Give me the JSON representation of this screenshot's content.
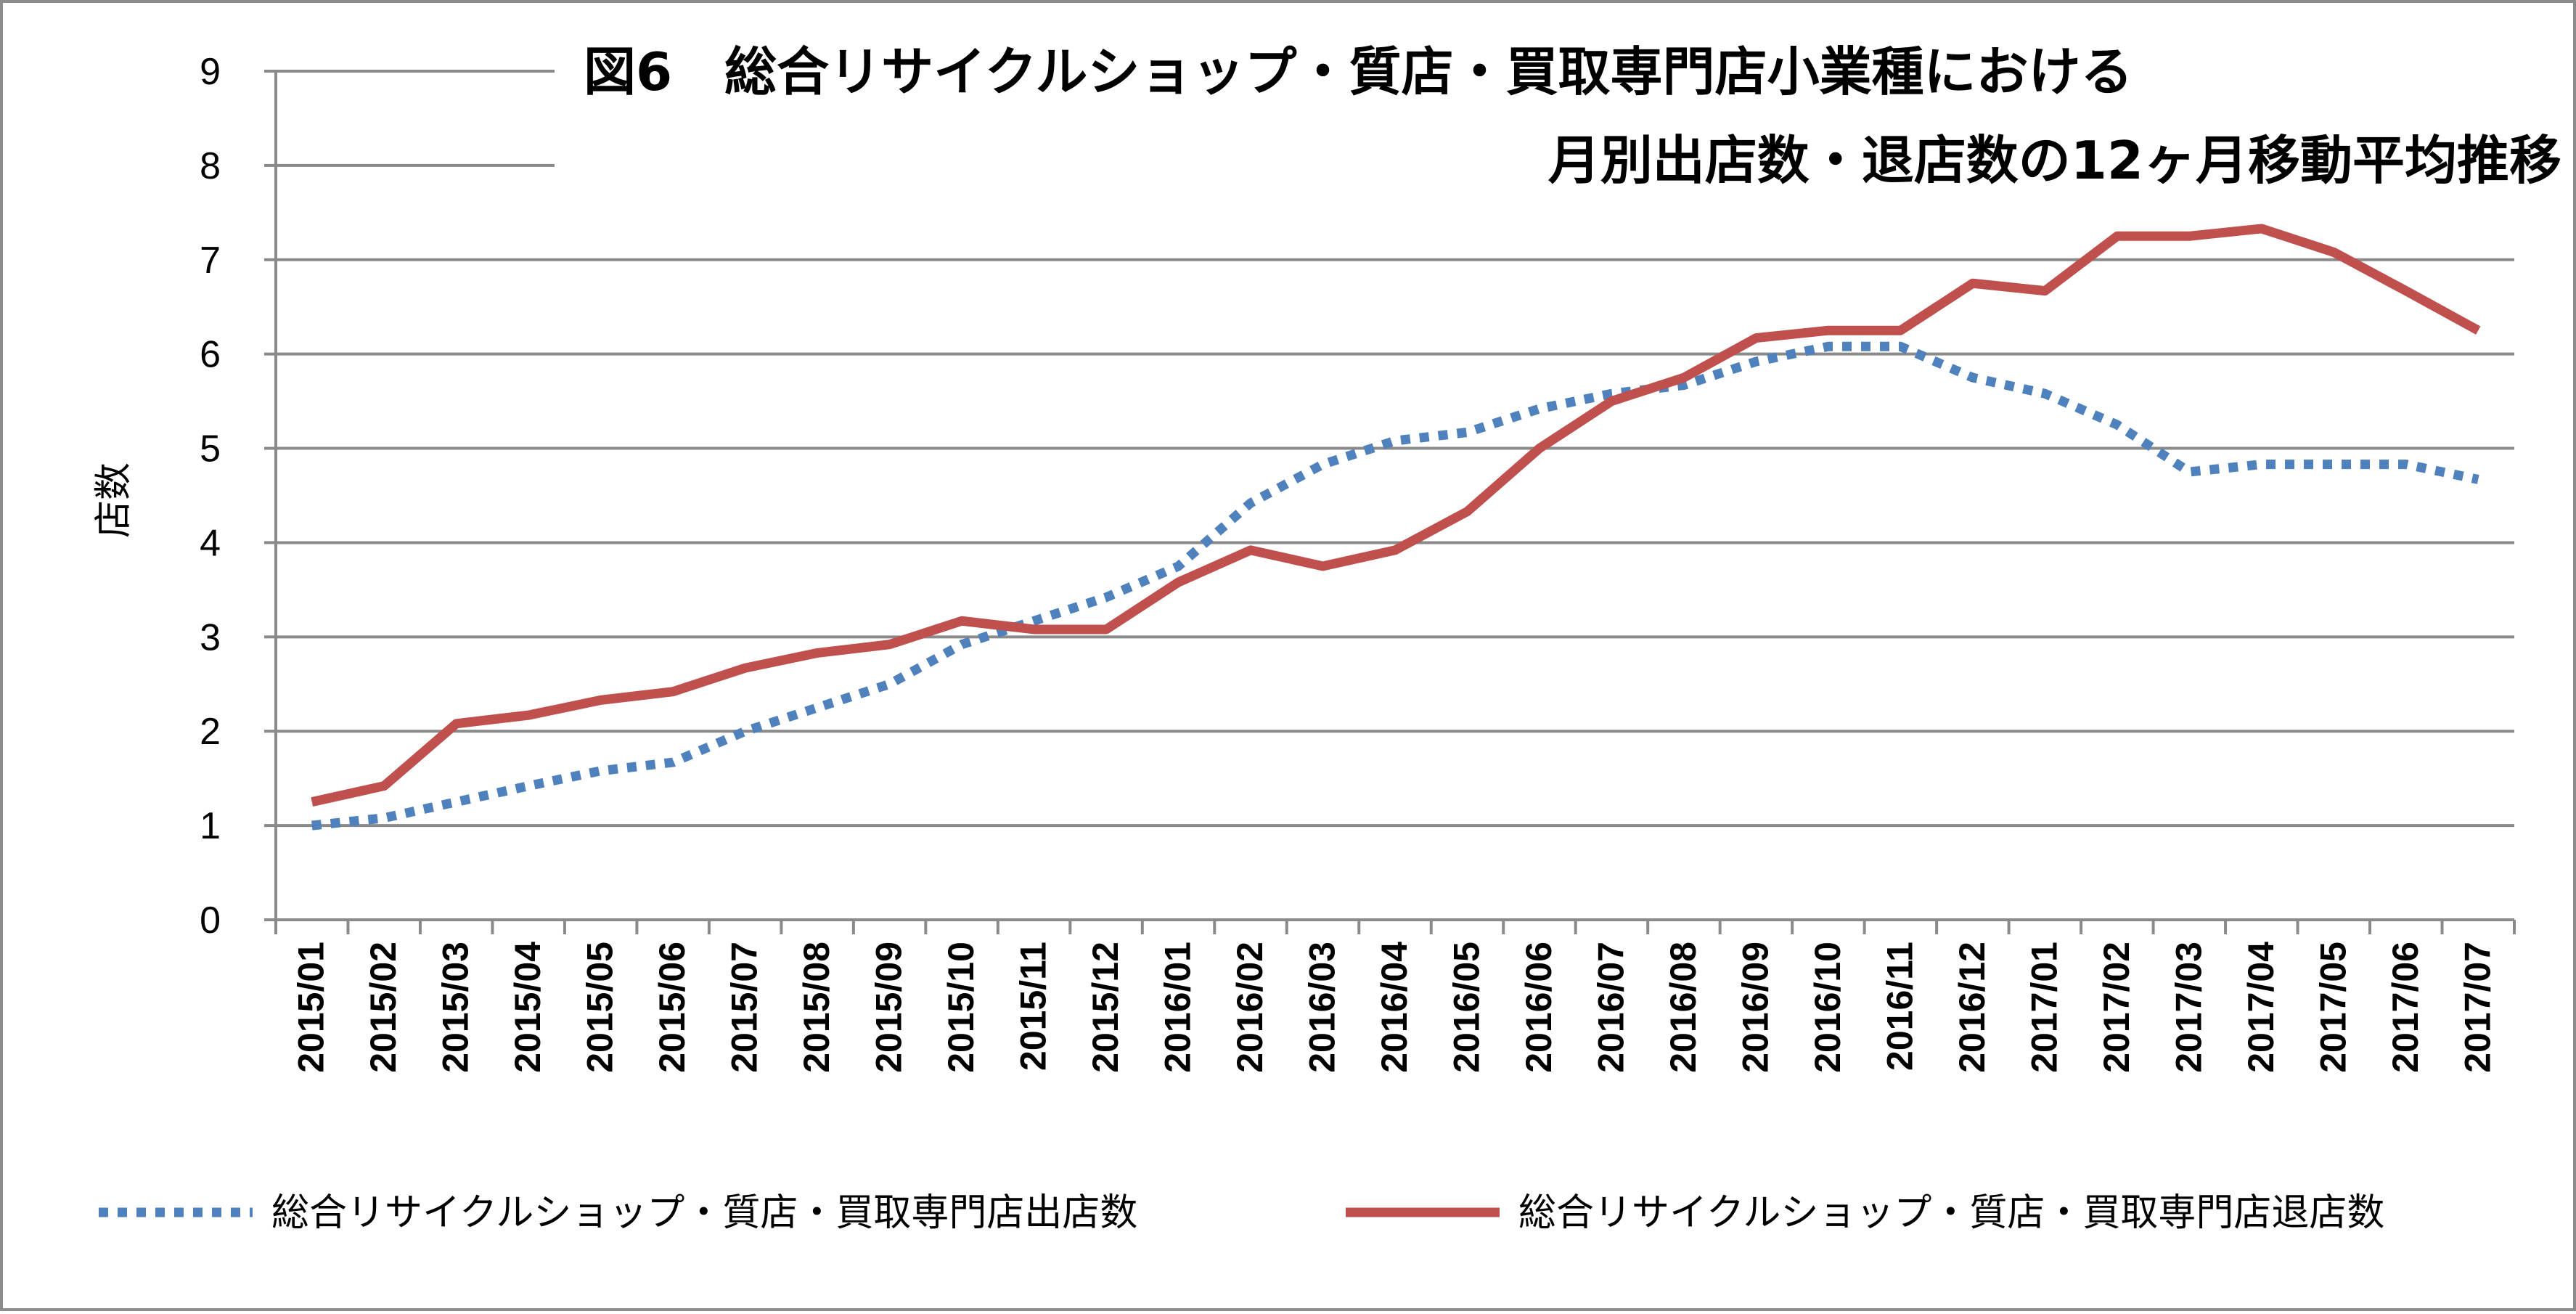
{
  "chart_data": {
    "type": "line",
    "title": [
      "図6　総合リサイクルショップ・質店・買取専門店小業種における",
      "月別出店数・退店数の12ヶ月移動平均推移"
    ],
    "ylabel": "店数",
    "xlabel": "",
    "ylim": [
      0,
      9
    ],
    "yticks": [
      "0",
      "1",
      "2",
      "3",
      "4",
      "5",
      "6",
      "7",
      "8",
      "9"
    ],
    "grid": true,
    "legend_position": "bottom",
    "categories": [
      "2015/01",
      "2015/02",
      "2015/03",
      "2015/04",
      "2015/05",
      "2015/06",
      "2015/07",
      "2015/08",
      "2015/09",
      "2015/10",
      "2015/11",
      "2015/12",
      "2016/01",
      "2016/02",
      "2016/03",
      "2016/04",
      "2016/05",
      "2016/06",
      "2016/07",
      "2016/08",
      "2016/09",
      "2016/10",
      "2016/11",
      "2016/12",
      "2017/01",
      "2017/02",
      "2017/03",
      "2017/04",
      "2017/05",
      "2017/06",
      "2017/07"
    ],
    "series": [
      {
        "name": "総合リサイクルショップ・質店・買取専門店出店数",
        "color": "#4f81bd",
        "style": "dotted",
        "values": [
          1.0,
          1.08,
          1.25,
          1.42,
          1.58,
          1.67,
          2.0,
          2.25,
          2.5,
          2.92,
          3.17,
          3.42,
          3.75,
          4.42,
          4.83,
          5.08,
          5.17,
          5.42,
          5.58,
          5.67,
          5.92,
          6.08,
          6.08,
          5.75,
          5.58,
          5.25,
          4.75,
          4.83,
          4.83,
          4.83,
          4.67
        ]
      },
      {
        "name": "総合リサイクルショップ・質店・買取専門店退店数",
        "color": "#c0504d",
        "style": "solid",
        "values": [
          1.25,
          1.42,
          2.08,
          2.17,
          2.33,
          2.42,
          2.67,
          2.83,
          2.92,
          3.17,
          3.08,
          3.08,
          3.58,
          3.92,
          3.75,
          3.92,
          4.33,
          5.0,
          5.5,
          5.75,
          6.17,
          6.25,
          6.25,
          6.75,
          6.67,
          7.25,
          7.25,
          7.33,
          7.08,
          6.67,
          6.25
        ]
      }
    ]
  }
}
